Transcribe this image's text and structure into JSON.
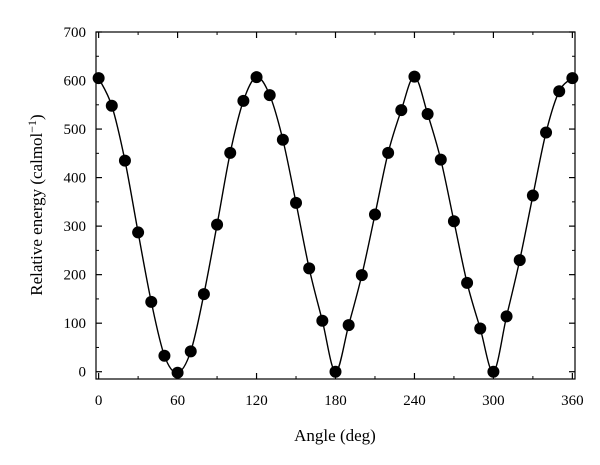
{
  "chart_data": {
    "type": "scatter",
    "xlabel": "Angle (deg)",
    "ylabel_main": "Relative energy (calmol",
    "ylabel_sup": "−1",
    "ylabel_close": ")",
    "xlim": [
      -2,
      362
    ],
    "ylim": [
      -15,
      700
    ],
    "xticks": [
      0,
      60,
      120,
      180,
      240,
      300,
      360
    ],
    "xtick_labels": [
      "0",
      "60",
      "120",
      "180",
      "240",
      "300",
      "360"
    ],
    "yticks": [
      0,
      100,
      200,
      300,
      400,
      500,
      600,
      700
    ],
    "ytick_labels": [
      "0",
      "100",
      "200",
      "300",
      "400",
      "500",
      "600",
      "700"
    ],
    "series": [
      {
        "marker": "filled-circle",
        "line": "smooth-fit",
        "x": [
          0,
          10,
          20,
          30,
          40,
          50,
          60,
          70,
          80,
          90,
          100,
          110,
          120,
          130,
          140,
          150,
          160,
          170,
          180,
          190,
          200,
          210,
          220,
          230,
          240,
          250,
          260,
          270,
          280,
          290,
          300,
          310,
          320,
          330,
          340,
          350,
          360
        ],
        "y": [
          605,
          548,
          435,
          287,
          144,
          33,
          -2,
          42,
          160,
          303,
          451,
          558,
          607,
          570,
          478,
          348,
          213,
          105,
          0,
          96,
          199,
          324,
          451,
          539,
          608,
          531,
          437,
          310,
          183,
          89,
          0,
          114,
          230,
          363,
          493,
          578,
          605
        ]
      }
    ]
  }
}
